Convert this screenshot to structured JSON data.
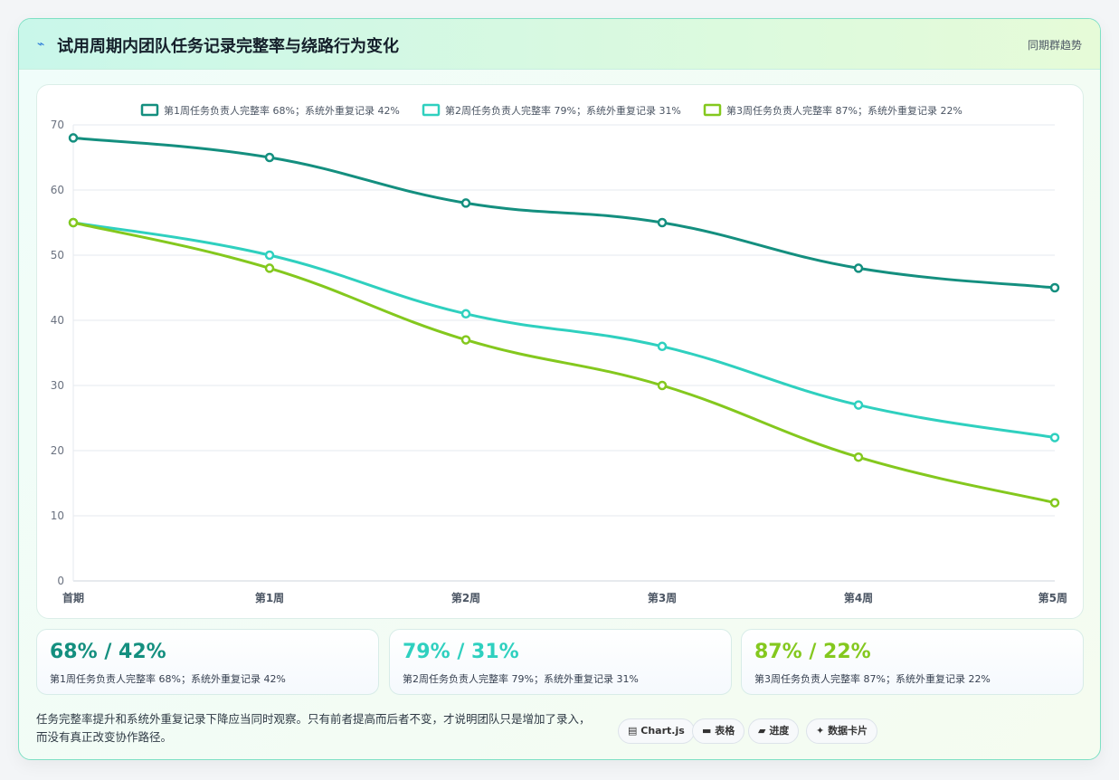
{
  "header": {
    "icon": "bolt-icon",
    "title": "试用周期内团队任务记录完整率与绕路行为变化",
    "tag": "同期群趋势"
  },
  "chart_data": {
    "type": "line",
    "categories": [
      "首期",
      "第1周",
      "第2周",
      "第3周",
      "第4周",
      "第5周"
    ],
    "ylim": [
      0,
      70
    ],
    "yticks": [
      0,
      10,
      20,
      30,
      40,
      50,
      60,
      70
    ],
    "legend_position": "top-center",
    "grid": true,
    "series": [
      {
        "name": "第1周任务负责人完整率 68%；系统外重复记录 42%",
        "color": "#148f7f",
        "values": [
          68,
          65,
          58,
          55,
          48,
          45
        ]
      },
      {
        "name": "第2周任务负责人完整率 79%；系统外重复记录 31%",
        "color": "#2fd0bf",
        "values": [
          55,
          50,
          41,
          36,
          27,
          22
        ]
      },
      {
        "name": "第3周任务负责人完整率 87%；系统外重复记录 22%",
        "color": "#84c81e",
        "values": [
          55,
          48,
          37,
          30,
          19,
          12
        ]
      }
    ]
  },
  "stats": [
    {
      "big": "68% / 42%",
      "small": "第1周任务负责人完整率 68%；系统外重复记录 42%",
      "color": "#148f7f"
    },
    {
      "big": "79% / 31%",
      "small": "第2周任务负责人完整率 79%；系统外重复记录 31%",
      "color": "#2fd0bf"
    },
    {
      "big": "87% / 22%",
      "small": "第3周任务负责人完整率 87%；系统外重复记录 22%",
      "color": "#84c81e"
    }
  ],
  "note": "任务完整率提升和系统外重复记录下降应当同时观察。只有前者提高而后者不变，才说明团队只是增加了录入，而没有真正改变协作路径。",
  "pills": [
    {
      "icon": "chart-icon",
      "glyph": "▤",
      "label": "Chart.js"
    },
    {
      "icon": "table-icon",
      "glyph": "▬",
      "label": "表格"
    },
    {
      "icon": "progress-icon",
      "glyph": "▰",
      "label": "进度"
    },
    {
      "icon": "sparkle-icon",
      "glyph": "✦",
      "label": "数据卡片"
    }
  ]
}
